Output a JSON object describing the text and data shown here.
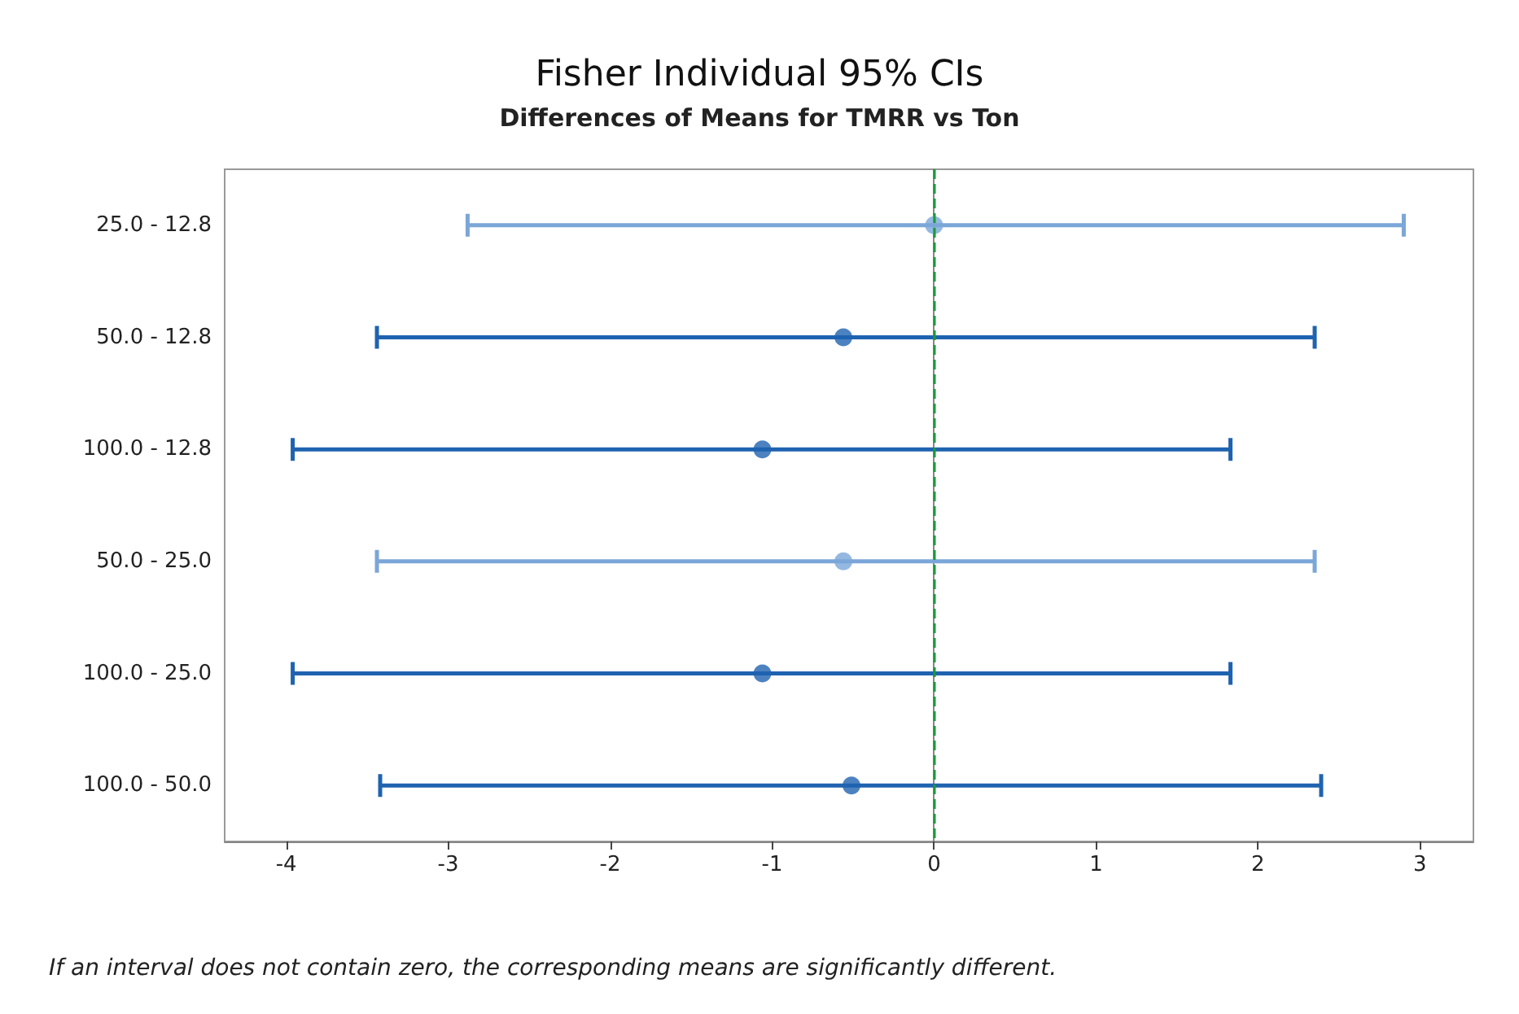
{
  "chart_data": {
    "type": "scatter",
    "title": "Fisher Individual 95% CIs",
    "subtitle": "Differences of Means for TMRR vs Ton",
    "orientation": "horizontal",
    "categories": [
      "25.0 - 12.8",
      "50.0 - 12.8",
      "100.0 - 12.8",
      "50.0 - 25.0",
      "100.0 - 25.0",
      "100.0 - 50.0"
    ],
    "values": [
      0.0,
      -0.56,
      -1.06,
      -0.56,
      -1.06,
      -0.51
    ],
    "errors": [
      [
        -2.88,
        2.9
      ],
      [
        -3.44,
        2.35
      ],
      [
        -3.96,
        1.83
      ],
      [
        -3.44,
        2.35
      ],
      [
        -3.96,
        1.83
      ],
      [
        -3.42,
        2.39
      ]
    ],
    "colors": [
      "#7ba6d8",
      "#1f63b0",
      "#1f63b0",
      "#7ba6d8",
      "#1f63b0",
      "#1f63b0"
    ],
    "marker": "circle",
    "xlim": [
      -4.38,
      3.33
    ],
    "xticks": [
      -4,
      -3,
      -2,
      -1,
      0,
      1,
      2,
      3
    ],
    "grid": false,
    "legend": false,
    "ref_lines": [
      {
        "axis": "x",
        "value": 0,
        "label": null,
        "color": "#1a9a3a",
        "line_style": "dashed"
      }
    ],
    "annotations": [
      "If an interval does not contain zero, the corresponding means are significantly different."
    ]
  }
}
